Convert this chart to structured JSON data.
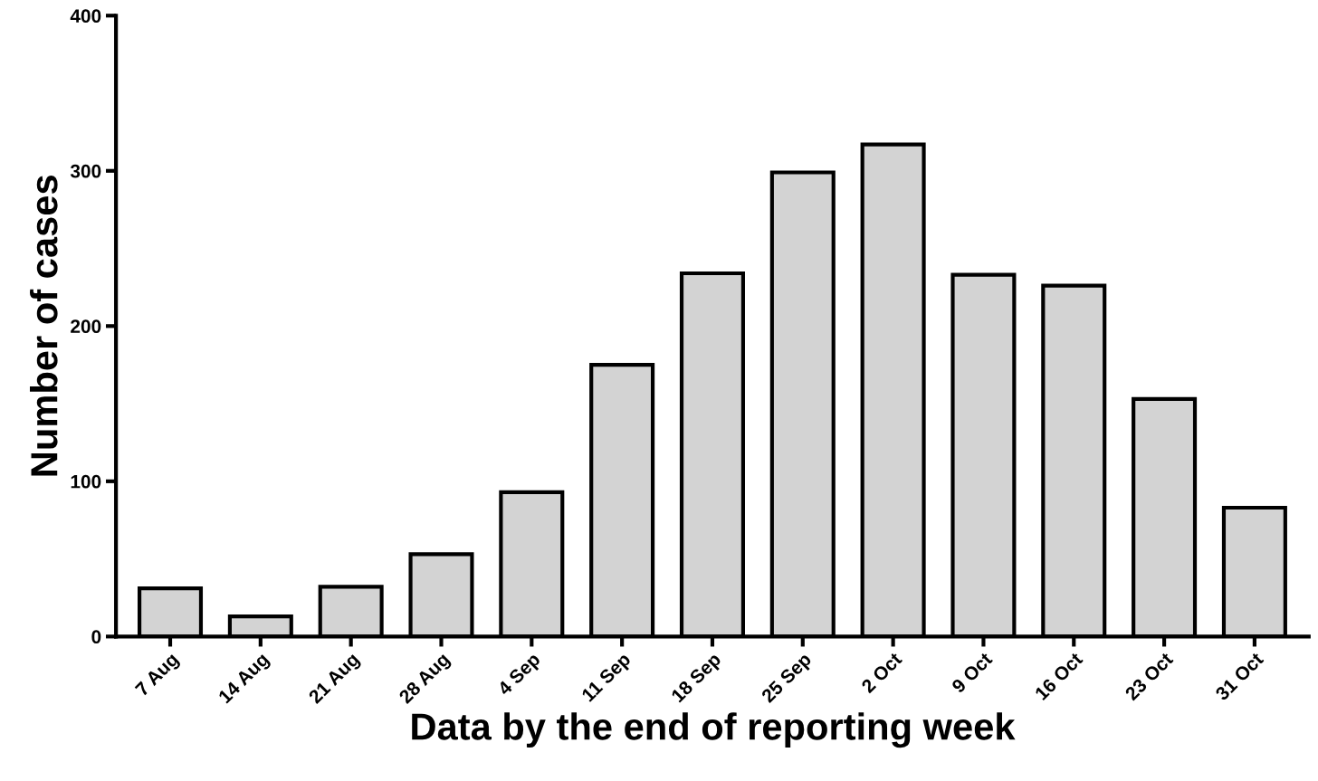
{
  "chart_data": {
    "type": "bar",
    "xlabel": "Data by the end of reporting week",
    "ylabel": "Number of cases",
    "categories": [
      "7 Aug",
      "14 Aug",
      "21 Aug",
      "28 Aug",
      "4 Sep",
      "11 Sep",
      "18 Sep",
      "25 Sep",
      "2 Oct",
      "9 Oct",
      "16 Oct",
      "23 Oct",
      "31 Oct"
    ],
    "values": [
      31,
      13,
      32,
      53,
      93,
      175,
      234,
      299,
      317,
      233,
      226,
      153,
      83
    ],
    "color": "#d3d3d3",
    "ylim": [
      0,
      400
    ],
    "yticks": [
      0,
      100,
      200,
      300,
      400
    ],
    "grid": false
  }
}
